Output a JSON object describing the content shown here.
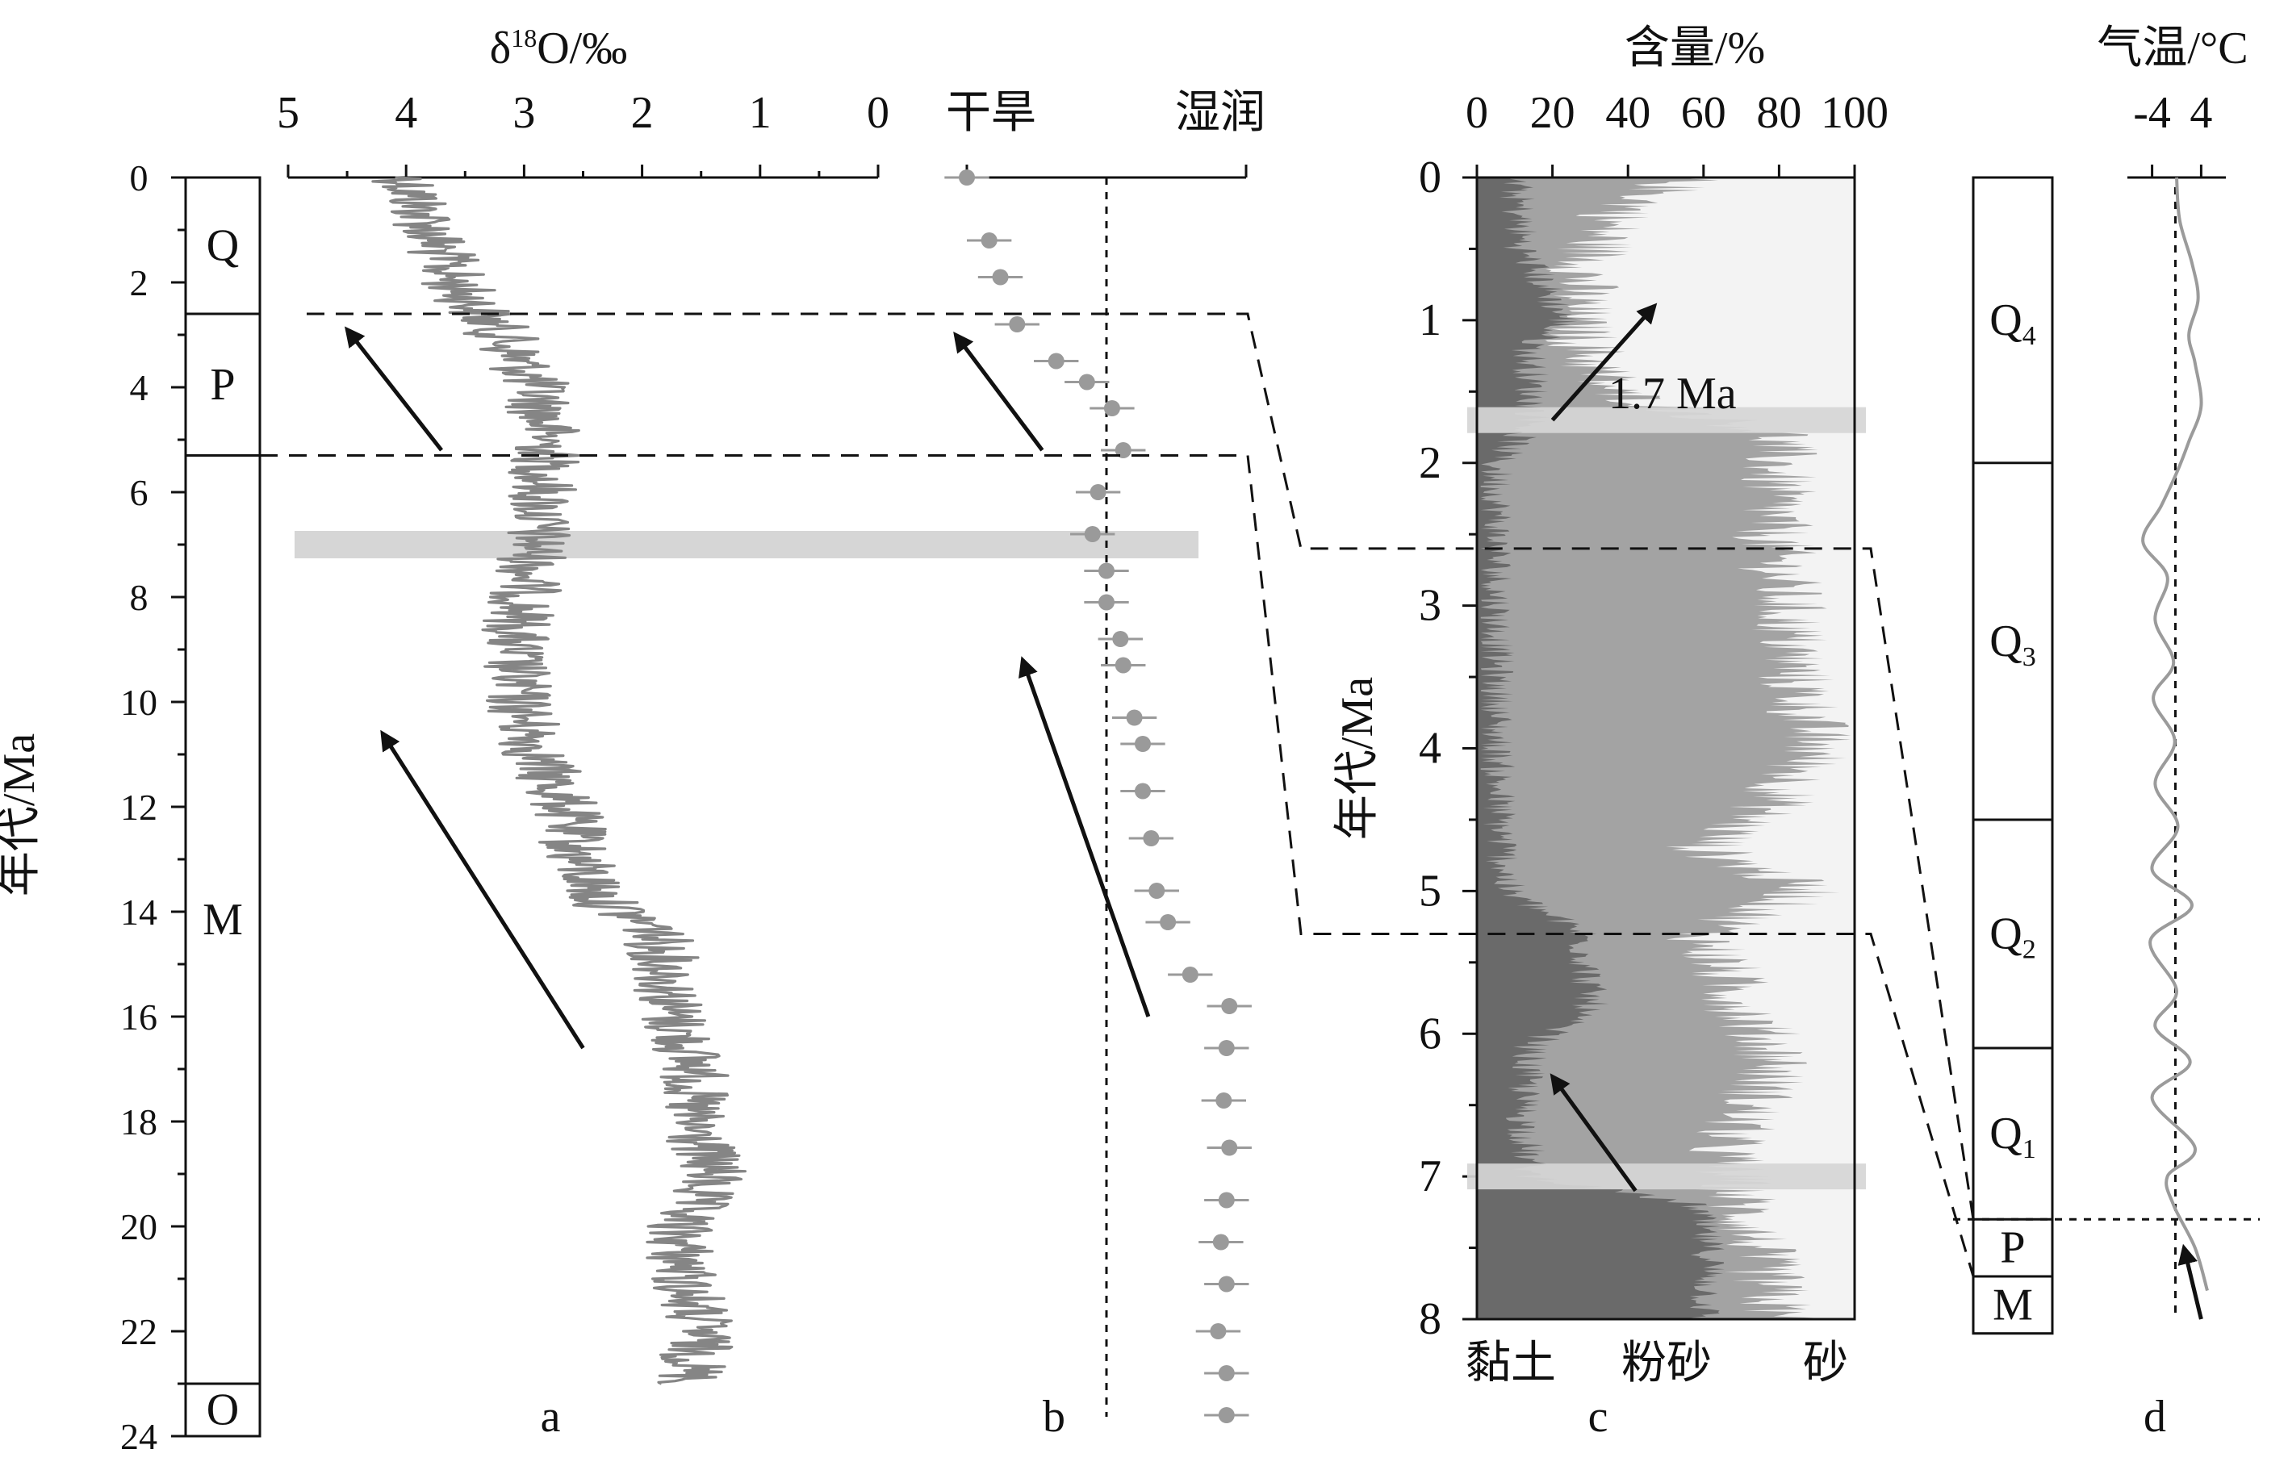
{
  "colors": {
    "curve": "#858585",
    "dot": "#9a9a9a",
    "clay": "#6a6a6a",
    "silt": "#a3a3a3",
    "sand": "#f3f3f3",
    "band": "#d6d6d6",
    "temp": "#9b9b9b",
    "ink": "#111111"
  },
  "icons": {
    "arrow": "arrow-icon"
  },
  "timescale": {
    "ylabel": "年代/Ma",
    "ticks": [
      "0",
      "2",
      "4",
      "6",
      "8",
      "10",
      "12",
      "14",
      "16",
      "18",
      "20",
      "22",
      "24"
    ],
    "units": [
      {
        "name": "Q",
        "from": 0,
        "to": 2.6
      },
      {
        "name": "P",
        "from": 2.6,
        "to": 5.3
      },
      {
        "name": "M",
        "from": 5.3,
        "to": 23
      },
      {
        "name": "O",
        "from": 23,
        "to": 24
      }
    ]
  },
  "chart_data": [
    {
      "panel": "a",
      "type": "line",
      "xlabel_prefix": "δ",
      "xlabel_sup": "18",
      "xlabel_rest": "O/‰",
      "xticks": [
        "5",
        "4",
        "3",
        "2",
        "1",
        "0"
      ],
      "xlim": [
        5,
        0
      ],
      "ylim": [
        0,
        24
      ],
      "ylabel": "年代/Ma",
      "series": [
        {
          "trend": [
            {
              "age": 0.0,
              "d18O": 4.0
            },
            {
              "age": 1.0,
              "d18O": 3.8
            },
            {
              "age": 2.0,
              "d18O": 3.6
            },
            {
              "age": 3.0,
              "d18O": 3.2
            },
            {
              "age": 4.0,
              "d18O": 2.9
            },
            {
              "age": 5.0,
              "d18O": 2.8
            },
            {
              "age": 6.0,
              "d18O": 2.85
            },
            {
              "age": 7.0,
              "d18O": 2.9
            },
            {
              "age": 8.0,
              "d18O": 3.0
            },
            {
              "age": 9.0,
              "d18O": 3.1
            },
            {
              "age": 10.0,
              "d18O": 3.05
            },
            {
              "age": 11.0,
              "d18O": 2.9
            },
            {
              "age": 12.0,
              "d18O": 2.65
            },
            {
              "age": 13.0,
              "d18O": 2.55
            },
            {
              "age": 13.8,
              "d18O": 2.35
            },
            {
              "age": 14.3,
              "d18O": 1.9
            },
            {
              "age": 15.0,
              "d18O": 1.8
            },
            {
              "age": 16.0,
              "d18O": 1.75
            },
            {
              "age": 17.0,
              "d18O": 1.55
            },
            {
              "age": 18.0,
              "d18O": 1.6
            },
            {
              "age": 19.0,
              "d18O": 1.4
            },
            {
              "age": 20.0,
              "d18O": 1.7
            },
            {
              "age": 21.0,
              "d18O": 1.65
            },
            {
              "age": 22.0,
              "d18O": 1.5
            },
            {
              "age": 23.0,
              "d18O": 1.6
            }
          ],
          "variability": 0.3
        }
      ],
      "arrow": {
        "from": {
          "age": 16.6,
          "d18O": 2.5
        },
        "to": {
          "age": 10.6,
          "d18O": 4.2
        }
      },
      "arrow2": {
        "from": {
          "age": 5.2,
          "d18O": 3.7
        },
        "to": {
          "age": 2.9,
          "d18O": 4.5
        }
      },
      "band_age": 7.0,
      "panel_label": "a"
    },
    {
      "panel": "b",
      "type": "scatter",
      "xlabel_left": "干旱",
      "xlabel_right": "湿润",
      "xlim": [
        0,
        10
      ],
      "threshold": 5,
      "ylim": [
        0,
        24
      ],
      "points": [
        {
          "age": 0.0,
          "index": 0.0
        },
        {
          "age": 1.2,
          "index": 0.8
        },
        {
          "age": 1.9,
          "index": 1.2
        },
        {
          "age": 2.8,
          "index": 1.8
        },
        {
          "age": 3.5,
          "index": 3.2
        },
        {
          "age": 3.9,
          "index": 4.3
        },
        {
          "age": 4.4,
          "index": 5.2
        },
        {
          "age": 5.2,
          "index": 5.6
        },
        {
          "age": 6.0,
          "index": 4.7
        },
        {
          "age": 6.8,
          "index": 4.5
        },
        {
          "age": 7.5,
          "index": 5.0
        },
        {
          "age": 8.1,
          "index": 5.0
        },
        {
          "age": 8.8,
          "index": 5.5
        },
        {
          "age": 9.3,
          "index": 5.6
        },
        {
          "age": 10.3,
          "index": 6.0
        },
        {
          "age": 10.8,
          "index": 6.3
        },
        {
          "age": 11.7,
          "index": 6.3
        },
        {
          "age": 12.6,
          "index": 6.6
        },
        {
          "age": 13.6,
          "index": 6.8
        },
        {
          "age": 14.2,
          "index": 7.2
        },
        {
          "age": 15.2,
          "index": 8.0
        },
        {
          "age": 15.8,
          "index": 9.4
        },
        {
          "age": 16.6,
          "index": 9.3
        },
        {
          "age": 17.6,
          "index": 9.2
        },
        {
          "age": 18.5,
          "index": 9.4
        },
        {
          "age": 19.5,
          "index": 9.3
        },
        {
          "age": 20.3,
          "index": 9.1
        },
        {
          "age": 21.1,
          "index": 9.3
        },
        {
          "age": 22.0,
          "index": 9.0
        },
        {
          "age": 22.8,
          "index": 9.3
        },
        {
          "age": 23.6,
          "index": 9.3
        }
      ],
      "error": 0.8,
      "arrow": {
        "from": {
          "age": 16.0,
          "index": 6.5
        },
        "to": {
          "age": 9.2,
          "index": 2.0
        }
      },
      "arrow2": {
        "from": {
          "age": 5.2,
          "index": 2.7
        },
        "to": {
          "age": 3.0,
          "index": -0.4
        }
      },
      "panel_label": "b"
    },
    {
      "panel": "c",
      "type": "area",
      "xlabel": "含量/%",
      "xticks": [
        "0",
        "20",
        "40",
        "60",
        "80",
        "100"
      ],
      "xlim": [
        0,
        100
      ],
      "ylim": [
        0,
        8
      ],
      "yticks": [
        "0",
        "1",
        "2",
        "3",
        "4",
        "5",
        "6",
        "7",
        "8"
      ],
      "ylabel": "年代/Ma",
      "series_names": [
        "黏土",
        "粉砂",
        "砂"
      ],
      "clay": [
        {
          "age": 0.0,
          "pct": 10
        },
        {
          "age": 0.5,
          "pct": 12
        },
        {
          "age": 0.85,
          "pct": 20
        },
        {
          "age": 1.0,
          "pct": 23
        },
        {
          "age": 1.2,
          "pct": 14
        },
        {
          "age": 1.7,
          "pct": 15
        },
        {
          "age": 2.0,
          "pct": 5
        },
        {
          "age": 3.0,
          "pct": 5
        },
        {
          "age": 4.0,
          "pct": 5
        },
        {
          "age": 4.5,
          "pct": 6
        },
        {
          "age": 5.0,
          "pct": 8
        },
        {
          "age": 5.3,
          "pct": 28
        },
        {
          "age": 5.8,
          "pct": 30
        },
        {
          "age": 6.1,
          "pct": 14
        },
        {
          "age": 6.5,
          "pct": 12
        },
        {
          "age": 7.0,
          "pct": 14
        },
        {
          "age": 7.2,
          "pct": 58
        },
        {
          "age": 7.6,
          "pct": 62
        },
        {
          "age": 8.0,
          "pct": 60
        }
      ],
      "silt_top": [
        {
          "age": 0.0,
          "pct": 55
        },
        {
          "age": 0.3,
          "pct": 35
        },
        {
          "age": 0.7,
          "pct": 28
        },
        {
          "age": 1.0,
          "pct": 25
        },
        {
          "age": 1.5,
          "pct": 35
        },
        {
          "age": 1.8,
          "pct": 80
        },
        {
          "age": 2.5,
          "pct": 78
        },
        {
          "age": 3.0,
          "pct": 82
        },
        {
          "age": 3.5,
          "pct": 84
        },
        {
          "age": 4.0,
          "pct": 90
        },
        {
          "age": 4.4,
          "pct": 78
        },
        {
          "age": 4.7,
          "pct": 60
        },
        {
          "age": 5.0,
          "pct": 88
        },
        {
          "age": 5.3,
          "pct": 60
        },
        {
          "age": 5.8,
          "pct": 70
        },
        {
          "age": 6.2,
          "pct": 80
        },
        {
          "age": 6.8,
          "pct": 65
        },
        {
          "age": 7.2,
          "pct": 70
        },
        {
          "age": 7.6,
          "pct": 75
        },
        {
          "age": 8.0,
          "pct": 80
        }
      ],
      "label_1p7": "1.7 Ma",
      "band_ages": [
        1.7,
        7.0
      ],
      "arrow": {
        "from": {
          "age": 1.7,
          "pct": 20
        },
        "to": {
          "age": 0.9,
          "pct": 47
        }
      },
      "arrow2": {
        "from": {
          "age": 7.1,
          "pct": 42
        },
        "to": {
          "age": 6.3,
          "pct": 20
        }
      },
      "panel_label": "c"
    },
    {
      "panel": "d",
      "type": "line",
      "xlabel": "气温/°C",
      "xticks": [
        "-4",
        "4"
      ],
      "xlim": [
        -6,
        6
      ],
      "ylim": [
        0,
        8
      ],
      "units": [
        {
          "name": "Q",
          "sub": "4",
          "from": 0,
          "to": 2.0
        },
        {
          "name": "Q",
          "sub": "3",
          "from": 2.0,
          "to": 4.5
        },
        {
          "name": "Q",
          "sub": "2",
          "from": 4.5,
          "to": 6.1
        },
        {
          "name": "Q",
          "sub": "1",
          "from": 6.1,
          "to": 7.3
        },
        {
          "name": "P",
          "sub": "",
          "from": 7.3,
          "to": 7.7
        },
        {
          "name": "M",
          "sub": "",
          "from": 7.7,
          "to": 8.1
        }
      ],
      "temperature": [
        {
          "age": 0.0,
          "t": 0.0
        },
        {
          "age": 0.3,
          "t": 0.5
        },
        {
          "age": 0.6,
          "t": 2.5
        },
        {
          "age": 0.85,
          "t": 3.5
        },
        {
          "age": 1.1,
          "t": 2.0
        },
        {
          "age": 1.3,
          "t": 3.0
        },
        {
          "age": 1.6,
          "t": 4.0
        },
        {
          "age": 1.85,
          "t": 2.0
        },
        {
          "age": 2.05,
          "t": 0.2
        },
        {
          "age": 2.3,
          "t": -2.5
        },
        {
          "age": 2.55,
          "t": -5.5
        },
        {
          "age": 2.8,
          "t": -1.5
        },
        {
          "age": 3.1,
          "t": -3.5
        },
        {
          "age": 3.4,
          "t": -0.5
        },
        {
          "age": 3.65,
          "t": -3.8
        },
        {
          "age": 3.95,
          "t": -0.3
        },
        {
          "age": 4.25,
          "t": -3.5
        },
        {
          "age": 4.55,
          "t": 0.2
        },
        {
          "age": 4.85,
          "t": -4.0
        },
        {
          "age": 5.1,
          "t": 2.5
        },
        {
          "age": 5.35,
          "t": -4.3
        },
        {
          "age": 5.7,
          "t": 0.0
        },
        {
          "age": 5.95,
          "t": -3.5
        },
        {
          "age": 6.2,
          "t": 2.2
        },
        {
          "age": 6.45,
          "t": -4.0
        },
        {
          "age": 6.8,
          "t": 3.0
        },
        {
          "age": 7.0,
          "t": -1.5
        },
        {
          "age": 7.2,
          "t": -0.5
        },
        {
          "age": 7.5,
          "t": 3.0
        },
        {
          "age": 7.8,
          "t": 5.0
        }
      ],
      "threshold": -0.2,
      "arrow": {
        "from": {
          "age": 8.0,
          "t": 4.0
        },
        "to": {
          "age": 7.5,
          "t": 1.2
        }
      },
      "panel_label": "d"
    }
  ]
}
